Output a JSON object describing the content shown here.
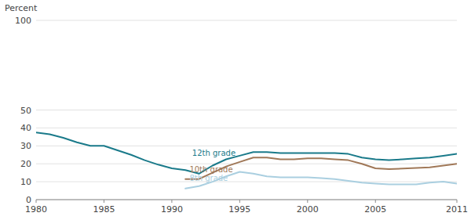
{
  "chart_data": {
    "type": "line",
    "y_label": "Percent",
    "series": [
      {
        "color": "#1a7a8a",
        "x": [
          1980,
          1981,
          1982,
          1983,
          1984,
          1985,
          1986,
          1987,
          1988,
          1989,
          1990,
          1991,
          1992,
          1993,
          1994,
          1995,
          1996,
          1997,
          1998,
          1999,
          2000,
          2001,
          2002,
          2003,
          2004,
          2005,
          2006,
          2007,
          2008,
          2009,
          2010,
          2011
        ],
        "values": [
          37.5,
          36.5,
          34.5,
          32.0,
          30.0,
          30.0,
          27.5,
          25.0,
          22.0,
          19.5,
          17.5,
          16.5,
          14.5,
          19.0,
          22.5,
          24.5,
          26.5,
          26.5,
          26.0,
          26.0,
          26.0,
          26.0,
          26.0,
          25.5,
          23.5,
          22.5,
          22.0,
          22.5,
          23.0,
          23.5,
          24.5,
          25.5
        ]
      },
      {
        "color": "#a07858",
        "x": [
          1991,
          1992,
          1993,
          1994,
          1995,
          1996,
          1997,
          1998,
          1999,
          2000,
          2001,
          2002,
          2003,
          2004,
          2005,
          2006,
          2009,
          2010,
          2011
        ],
        "values": [
          11.5,
          11.5,
          15.0,
          18.5,
          21.0,
          23.5,
          23.5,
          22.5,
          22.5,
          23.0,
          23.0,
          22.5,
          22.0,
          20.0,
          17.5,
          17.0,
          18.0,
          19.0,
          20.0
        ]
      },
      {
        "color": "#aacfe0",
        "x": [
          1991,
          1992,
          1993,
          1994,
          1995,
          1996,
          1997,
          1998,
          1999,
          2000,
          2001,
          2002,
          2003,
          2004,
          2005,
          2006,
          2007,
          2008,
          2009,
          2010,
          2011
        ],
        "values": [
          6.2,
          7.5,
          10.0,
          13.0,
          15.5,
          14.5,
          13.0,
          12.5,
          12.5,
          12.5,
          12.0,
          11.5,
          10.5,
          9.5,
          9.0,
          8.5,
          8.5,
          8.5,
          9.5,
          10.0,
          9.0
        ]
      }
    ],
    "annotations": [
      {
        "text": "12th grade",
        "x": 1991.5,
        "y": 23.5,
        "color": "#1a7a8a"
      },
      {
        "text": "10th grade",
        "x": 1991.3,
        "y": 14.5,
        "color": "#a07858"
      },
      {
        "text": "8th grade",
        "x": 1991.3,
        "y": 9.5,
        "color": "#aacfe0"
      }
    ],
    "xlim": [
      1980,
      2011
    ],
    "ylim": [
      0,
      100
    ],
    "xticks": [
      1980,
      1985,
      1990,
      1995,
      2000,
      2005,
      2011
    ],
    "yticks": [
      0,
      10,
      20,
      30,
      40,
      50,
      100
    ],
    "grid": true
  }
}
